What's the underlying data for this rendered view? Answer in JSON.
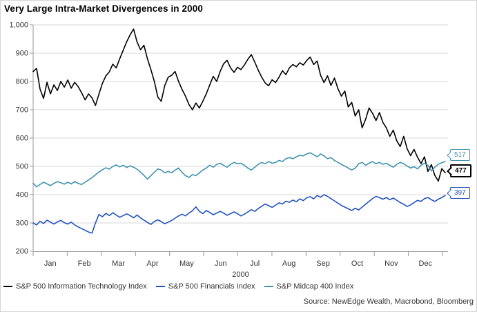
{
  "title": "Very Large Intra-Market Divergences in 2000",
  "source": "Source: NewEdge Wealth, Macrobond, Bloomberg",
  "chart_data": {
    "type": "line",
    "title": "Very Large Intra-Market Divergences in 2000",
    "x_axis": {
      "year_label": "2000",
      "month_labels": [
        "Jan",
        "Feb",
        "Mar",
        "Apr",
        "May",
        "Jun",
        "Jul",
        "Aug",
        "Sep",
        "Oct",
        "Nov",
        "Dec"
      ]
    },
    "y_axis": {
      "min": 200,
      "max": 1000,
      "step": 100,
      "tick_labels": [
        "200",
        "300",
        "400",
        "500",
        "600",
        "700",
        "800",
        "900",
        "1,000"
      ]
    },
    "grid": true,
    "legend_position": "bottom-left",
    "series": [
      {
        "name": "S&P 500 Information Technology Index",
        "color": "#000000",
        "end_label": "477",
        "emphasis": true,
        "values": [
          835,
          846,
          773,
          740,
          797,
          756,
          788,
          768,
          800,
          780,
          805,
          776,
          797,
          782,
          760,
          735,
          756,
          742,
          715,
          755,
          793,
          820,
          834,
          861,
          848,
          880,
          910,
          940,
          965,
          985,
          940,
          912,
          928,
          880,
          842,
          800,
          745,
          730,
          785,
          815,
          822,
          835,
          800,
          772,
          748,
          718,
          700,
          724,
          706,
          730,
          756,
          788,
          818,
          800,
          835,
          862,
          875,
          848,
          832,
          850,
          842,
          858,
          878,
          895,
          868,
          840,
          815,
          795,
          785,
          806,
          796,
          815,
          838,
          824,
          848,
          860,
          852,
          866,
          858,
          874,
          886,
          860,
          872,
          822,
          796,
          820,
          786,
          812,
          775,
          748,
          766,
          710,
          726,
          678,
          700,
          636,
          666,
          706,
          688,
          662,
          690,
          655,
          636,
          606,
          628,
          590,
          570,
          606,
          562,
          538,
          560,
          532,
          510,
          534,
          482,
          506,
          468,
          448,
          492,
          477
        ]
      },
      {
        "name": "S&P 500 Financials Index",
        "color": "#2052c0",
        "end_label": "397",
        "emphasis": false,
        "values": [
          300,
          293,
          306,
          298,
          310,
          303,
          296,
          304,
          309,
          301,
          296,
          303,
          293,
          286,
          280,
          274,
          268,
          264,
          300,
          330,
          322,
          334,
          326,
          336,
          328,
          320,
          326,
          332,
          326,
          318,
          328,
          318,
          310,
          302,
          295,
          305,
          311,
          305,
          297,
          303,
          309,
          317,
          325,
          331,
          325,
          335,
          343,
          357,
          341,
          333,
          344,
          337,
          329,
          335,
          341,
          335,
          327,
          333,
          339,
          333,
          325,
          331,
          339,
          347,
          341,
          351,
          359,
          367,
          361,
          355,
          363,
          371,
          367,
          377,
          373,
          381,
          375,
          385,
          379,
          389,
          393,
          385,
          397,
          391,
          400,
          394,
          386,
          378,
          370,
          362,
          356,
          350,
          344,
          352,
          346,
          356,
          366,
          376,
          386,
          394,
          390,
          384,
          390,
          382,
          388,
          380,
          372,
          366,
          358,
          364,
          372,
          380,
          376,
          386,
          390,
          382,
          376,
          384,
          390,
          397
        ]
      },
      {
        "name": "S&P Midcap 400 Index",
        "color": "#4093af",
        "end_label": "517",
        "emphasis": false,
        "values": [
          440,
          428,
          436,
          444,
          438,
          432,
          440,
          446,
          442,
          437,
          444,
          438,
          446,
          440,
          436,
          444,
          452,
          460,
          470,
          480,
          488,
          495,
          490,
          500,
          505,
          498,
          504,
          496,
          502,
          497,
          490,
          480,
          468,
          455,
          467,
          479,
          491,
          487,
          477,
          482,
          477,
          487,
          494,
          479,
          467,
          461,
          471,
          467,
          477,
          487,
          494,
          504,
          497,
          507,
          511,
          504,
          497,
          507,
          514,
          509,
          511,
          504,
          494,
          487,
          497,
          507,
          514,
          509,
          517,
          511,
          514,
          521,
          517,
          527,
          531,
          527,
          534,
          539,
          537,
          544,
          548,
          541,
          534,
          544,
          537,
          527,
          531,
          521,
          514,
          507,
          501,
          494,
          487,
          494,
          509,
          514,
          504,
          511,
          517,
          509,
          514,
          507,
          511,
          504,
          497,
          507,
          514,
          509,
          501,
          494,
          499,
          491,
          504,
          511,
          504,
          484,
          497,
          508,
          513,
          517
        ]
      }
    ]
  },
  "colors": {
    "gridline": "#d9d9d9",
    "axis": "#999999",
    "tick_text": "#333333"
  }
}
